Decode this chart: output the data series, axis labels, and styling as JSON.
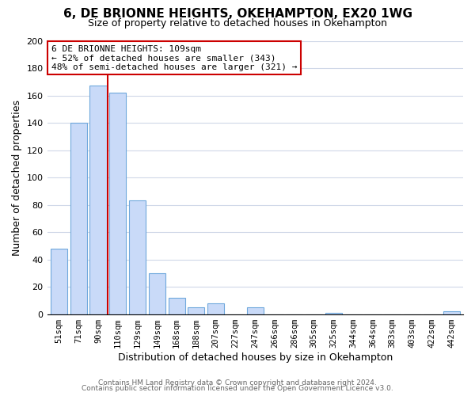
{
  "title": "6, DE BRIONNE HEIGHTS, OKEHAMPTON, EX20 1WG",
  "subtitle": "Size of property relative to detached houses in Okehampton",
  "xlabel": "Distribution of detached houses by size in Okehampton",
  "ylabel": "Number of detached properties",
  "bar_labels": [
    "51sqm",
    "71sqm",
    "90sqm",
    "110sqm",
    "129sqm",
    "149sqm",
    "168sqm",
    "188sqm",
    "207sqm",
    "227sqm",
    "247sqm",
    "266sqm",
    "286sqm",
    "305sqm",
    "325sqm",
    "344sqm",
    "364sqm",
    "383sqm",
    "403sqm",
    "422sqm",
    "442sqm"
  ],
  "bar_values": [
    48,
    140,
    167,
    162,
    83,
    30,
    12,
    5,
    8,
    0,
    5,
    0,
    0,
    0,
    1,
    0,
    0,
    0,
    0,
    0,
    2
  ],
  "bar_color": "#c9daf8",
  "bar_edge_color": "#6fa8dc",
  "marker_line_color": "#cc0000",
  "annotation_text": "6 DE BRIONNE HEIGHTS: 109sqm\n← 52% of detached houses are smaller (343)\n48% of semi-detached houses are larger (321) →",
  "annotation_box_color": "#ffffff",
  "annotation_box_edge_color": "#cc0000",
  "ylim": [
    0,
    200
  ],
  "yticks": [
    0,
    20,
    40,
    60,
    80,
    100,
    120,
    140,
    160,
    180,
    200
  ],
  "footer_line1": "Contains HM Land Registry data © Crown copyright and database right 2024.",
  "footer_line2": "Contains public sector information licensed under the Open Government Licence v3.0.",
  "background_color": "#ffffff",
  "grid_color": "#d0d8e8",
  "title_fontsize": 11,
  "subtitle_fontsize": 9
}
